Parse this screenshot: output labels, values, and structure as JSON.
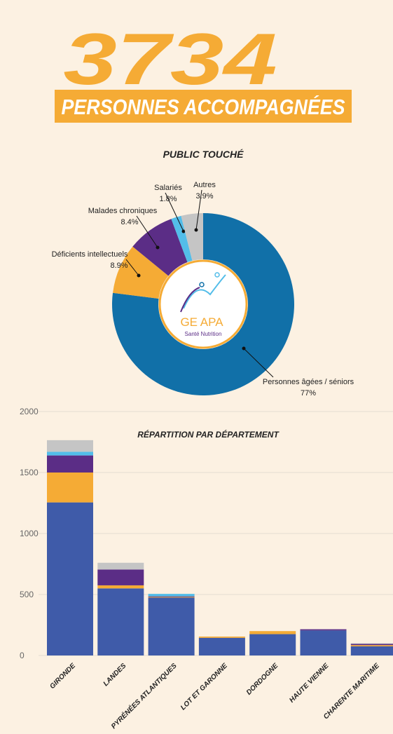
{
  "header": {
    "number": "3734",
    "subtitle": "PERSONNES ACCOMPAGNÉES"
  },
  "logo": {
    "name": "GE APA",
    "tagline": "Santé Nutrition"
  },
  "chart_data": [
    {
      "type": "donut",
      "title": "PUBLIC TOUCHÉ",
      "categories": [
        "Personnes âgées / séniors",
        "Déficients intellectuels",
        "Malades chroniques",
        "Salariés",
        "Autres"
      ],
      "values": [
        77,
        8.9,
        8.4,
        1.8,
        3.9
      ],
      "value_labels": [
        "77%",
        "8.9%",
        "8.4%",
        "1.8%",
        "3.9%"
      ],
      "colors": [
        "#1170a8",
        "#f5ab35",
        "#5b2d86",
        "#53bde9",
        "#c5c5c5"
      ]
    },
    {
      "type": "stacked_bar",
      "title": "RÉPARTITION PAR DÉPARTEMENT",
      "categories": [
        "GIRONDE",
        "LANDES",
        "PYRÉNÉES ATLANTIQUES",
        "LOT ET GARONNE",
        "DORDOGNE",
        "HAUTE VIENNE",
        "CHARENTE MARITIME"
      ],
      "series": [
        {
          "color": "#3f5ba9",
          "values": [
            1255,
            550,
            475,
            145,
            175,
            205,
            75
          ]
        },
        {
          "color": "#f5ab35",
          "values": [
            245,
            25,
            5,
            10,
            25,
            0,
            10
          ]
        },
        {
          "color": "#5b2d86",
          "values": [
            140,
            130,
            5,
            0,
            0,
            10,
            10
          ]
        },
        {
          "color": "#53bde9",
          "values": [
            30,
            0,
            20,
            0,
            0,
            0,
            0
          ]
        },
        {
          "color": "#c5c5c5",
          "values": [
            95,
            55,
            0,
            0,
            0,
            0,
            5
          ]
        }
      ],
      "ylim": [
        0,
        2000
      ],
      "yticks": [
        0,
        500,
        1000,
        1500,
        2000
      ],
      "grid": true
    }
  ]
}
